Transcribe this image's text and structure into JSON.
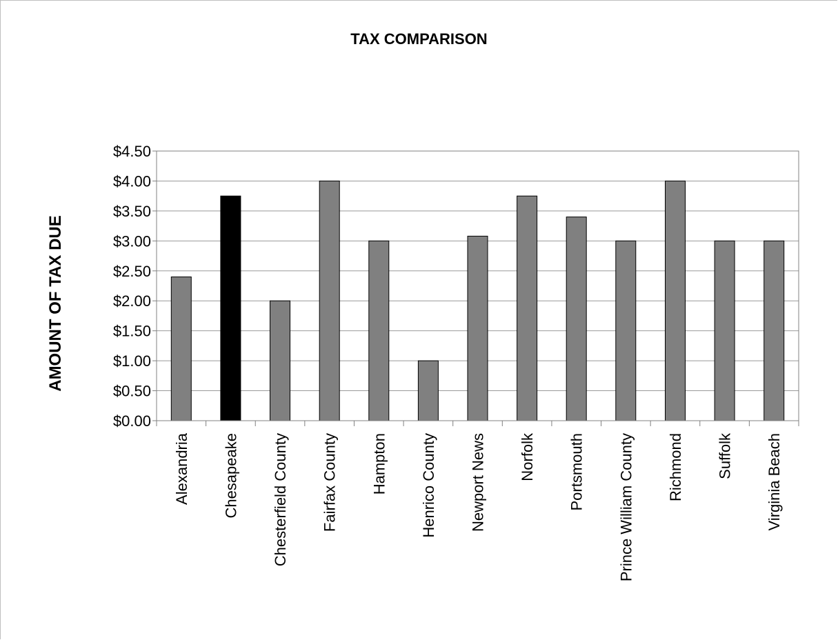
{
  "chart_data": {
    "type": "bar",
    "title": "TAX COMPARISON",
    "xlabel": "",
    "ylabel": "AMOUNT OF TAX DUE",
    "ylim": [
      0,
      4.5
    ],
    "ytick_step": 0.5,
    "yticks": [
      "$0.00",
      "$0.50",
      "$1.00",
      "$1.50",
      "$2.00",
      "$2.50",
      "$3.00",
      "$3.50",
      "$4.00",
      "$4.50"
    ],
    "grid": true,
    "categories": [
      "Alexandria",
      "Chesapeake",
      "Chesterfield County",
      "Fairfax County",
      "Hampton",
      "Henrico County",
      "Newport News",
      "Norfolk",
      "Portsmouth",
      "Prince William County",
      "Richmond",
      "Suffolk",
      "Virginia Beach"
    ],
    "values": [
      2.4,
      3.75,
      2.0,
      4.0,
      3.0,
      1.0,
      3.08,
      3.75,
      3.4,
      3.0,
      4.0,
      3.0,
      3.0
    ],
    "highlight_category": "Chesapeake",
    "colors": {
      "bar": "#808080",
      "highlight": "#000000",
      "grid": "#999999",
      "axis": "#808080"
    }
  }
}
